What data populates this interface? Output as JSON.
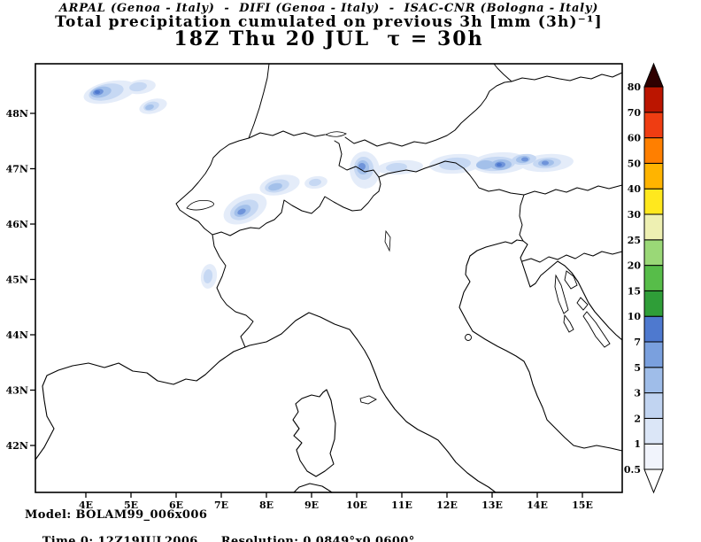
{
  "header": {
    "institutions": "ARPAL (Genoa - Italy)  -  DIFI (Genoa - Italy)  -  ISAC-CNR (Bologna - Italy)",
    "title": "Total precipitation cumulated on previous 3h [mm (3h)⁻¹]",
    "valid_time": "18Z Thu 20 JUL  τ = 30h"
  },
  "axes": {
    "lat_labels": [
      "48N",
      "47N",
      "46N",
      "45N",
      "44N",
      "43N",
      "42N"
    ],
    "lon_labels": [
      "4E",
      "5E",
      "6E",
      "7E",
      "8E",
      "9E",
      "10E",
      "11E",
      "12E",
      "13E",
      "14E",
      "15E"
    ]
  },
  "colorbar": {
    "levels": [
      "0.5",
      "1",
      "2",
      "3",
      "5",
      "7",
      "10",
      "15",
      "20",
      "25",
      "30",
      "40",
      "50",
      "60",
      "70",
      "80"
    ],
    "segment_colors": [
      "#f1f4fc",
      "#dbe6f7",
      "#c1d4f1",
      "#9fbde9",
      "#7aa0de",
      "#4e79cf",
      "#2f9e38",
      "#57bd49",
      "#9ad877",
      "#eef0b2",
      "#ffe81e",
      "#ffb400",
      "#ff7f00",
      "#ef3d12",
      "#bb1500"
    ],
    "under_color": "#ffffff",
    "over_color": "#2e0000"
  },
  "precip": {
    "shade_colors": [
      "#e4ecf9",
      "#c6d8f3",
      "#a3c0ea",
      "#6f94da",
      "#4e79cf"
    ]
  },
  "footer": {
    "model": "Model: BOLAM99_006x006",
    "time0": "Time 0: 12Z19JUL2006",
    "resolution": "Resolution: 0.0849°x0.0600°"
  }
}
